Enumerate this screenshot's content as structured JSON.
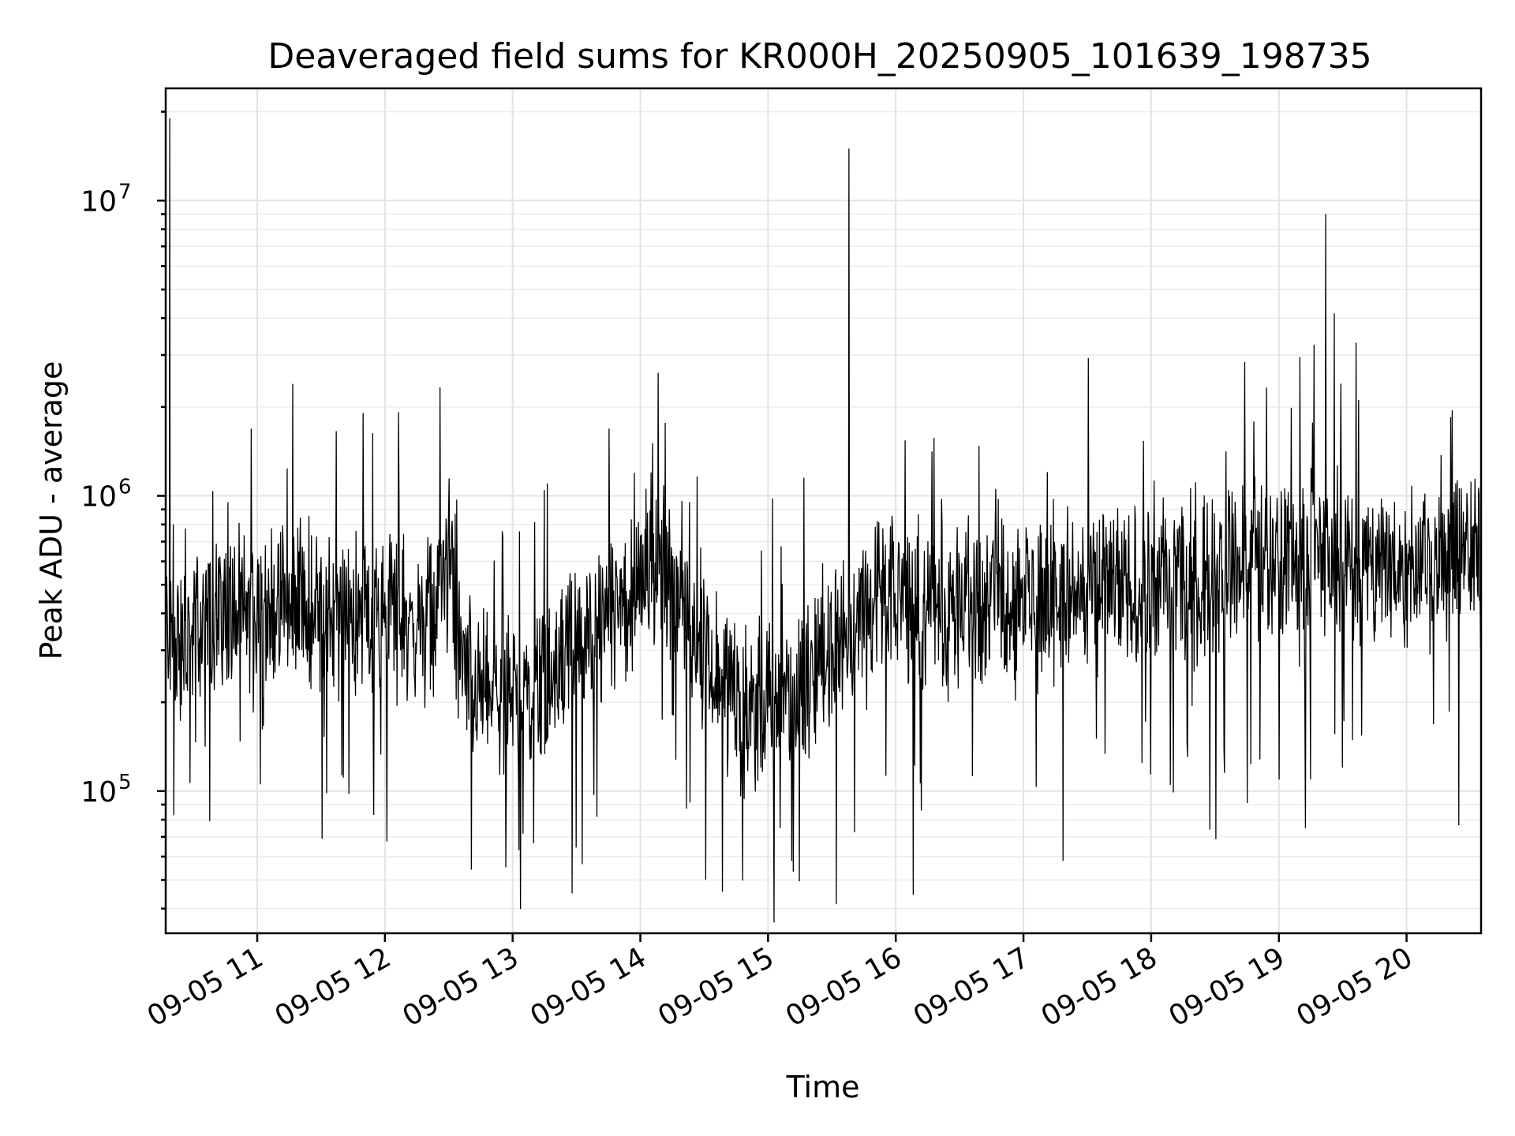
{
  "chart_data": {
    "type": "line",
    "title": "Deaveraged field sums for KR000H_20250905_101639_198735",
    "xlabel": "Time",
    "ylabel": "Peak ADU - average",
    "yscale": "log",
    "ylim": [
      33000,
      24000000
    ],
    "xlim": [
      "2025-09-05T10:17",
      "2025-09-05T20:35"
    ],
    "grid": true,
    "line_color": "#000000",
    "x_ticks": [
      "09-05 11",
      "09-05 12",
      "09-05 13",
      "09-05 14",
      "09-05 15",
      "09-05 16",
      "09-05 17",
      "09-05 18",
      "09-05 19",
      "09-05 20"
    ],
    "y_ticks": [
      {
        "base": "10",
        "exp": "5",
        "value": 100000
      },
      {
        "base": "10",
        "exp": "6",
        "value": 1000000
      },
      {
        "base": "10",
        "exp": "7",
        "value": 10000000
      }
    ],
    "series": [
      {
        "x": [
          "2025-09-05T10:17",
          "2025-09-05T10:19",
          "2025-09-05T10:20",
          "2025-09-05T10:25",
          "2025-09-05T10:30",
          "2025-09-05T10:35",
          "2025-09-05T10:42",
          "2025-09-05T10:50",
          "2025-09-05T10:58",
          "2025-09-05T11:05",
          "2025-09-05T11:08",
          "2025-09-05T11:12",
          "2025-09-05T11:20",
          "2025-09-05T11:30",
          "2025-09-05T11:40",
          "2025-09-05T11:48",
          "2025-09-05T11:55",
          "2025-09-05T12:04",
          "2025-09-05T12:15",
          "2025-09-05T12:25",
          "2025-09-05T12:30",
          "2025-09-05T12:35",
          "2025-09-05T12:45",
          "2025-09-05T12:55",
          "2025-09-05T13:05",
          "2025-09-05T13:15",
          "2025-09-05T13:22",
          "2025-09-05T13:30",
          "2025-09-05T13:35",
          "2025-09-05T13:45",
          "2025-09-05T13:55",
          "2025-09-05T14:01",
          "2025-09-05T14:05",
          "2025-09-05T14:15",
          "2025-09-05T14:25",
          "2025-09-05T14:35",
          "2025-09-05T14:45",
          "2025-09-05T14:55",
          "2025-09-05T15:05",
          "2025-09-05T15:15",
          "2025-09-05T15:25",
          "2025-09-05T15:35",
          "2025-09-05T15:38",
          "2025-09-05T15:45",
          "2025-09-05T16:00",
          "2025-09-05T16:15",
          "2025-09-05T16:30",
          "2025-09-05T16:45",
          "2025-09-05T17:00",
          "2025-09-05T17:15",
          "2025-09-05T17:30",
          "2025-09-05T17:45",
          "2025-09-05T18:00",
          "2025-09-05T18:15",
          "2025-09-05T18:30",
          "2025-09-05T18:45",
          "2025-09-05T19:00",
          "2025-09-05T19:15",
          "2025-09-05T19:22",
          "2025-09-05T19:30",
          "2025-09-05T19:45",
          "2025-09-05T20:00",
          "2025-09-05T20:10",
          "2025-09-05T20:15",
          "2025-09-05T20:25",
          "2025-09-05T20:35"
        ],
        "values": [
          380000,
          19000000,
          320000,
          300000,
          350000,
          380000,
          400000,
          420000,
          380000,
          420000,
          420000,
          400000,
          450000,
          420000,
          380000,
          400000,
          380000,
          400000,
          350000,
          450000,
          600000,
          280000,
          220000,
          200000,
          220000,
          250000,
          280000,
          300000,
          320000,
          380000,
          400000,
          600000,
          700000,
          500000,
          350000,
          250000,
          200000,
          180000,
          200000,
          220000,
          260000,
          350000,
          15000000,
          450000,
          420000,
          400000,
          420000,
          450000,
          450000,
          460000,
          480000,
          480000,
          500000,
          520000,
          550000,
          580000,
          620000,
          600000,
          9000000,
          600000,
          580000,
          560000,
          580000,
          620000,
          650000,
          600000
        ]
      }
    ]
  }
}
